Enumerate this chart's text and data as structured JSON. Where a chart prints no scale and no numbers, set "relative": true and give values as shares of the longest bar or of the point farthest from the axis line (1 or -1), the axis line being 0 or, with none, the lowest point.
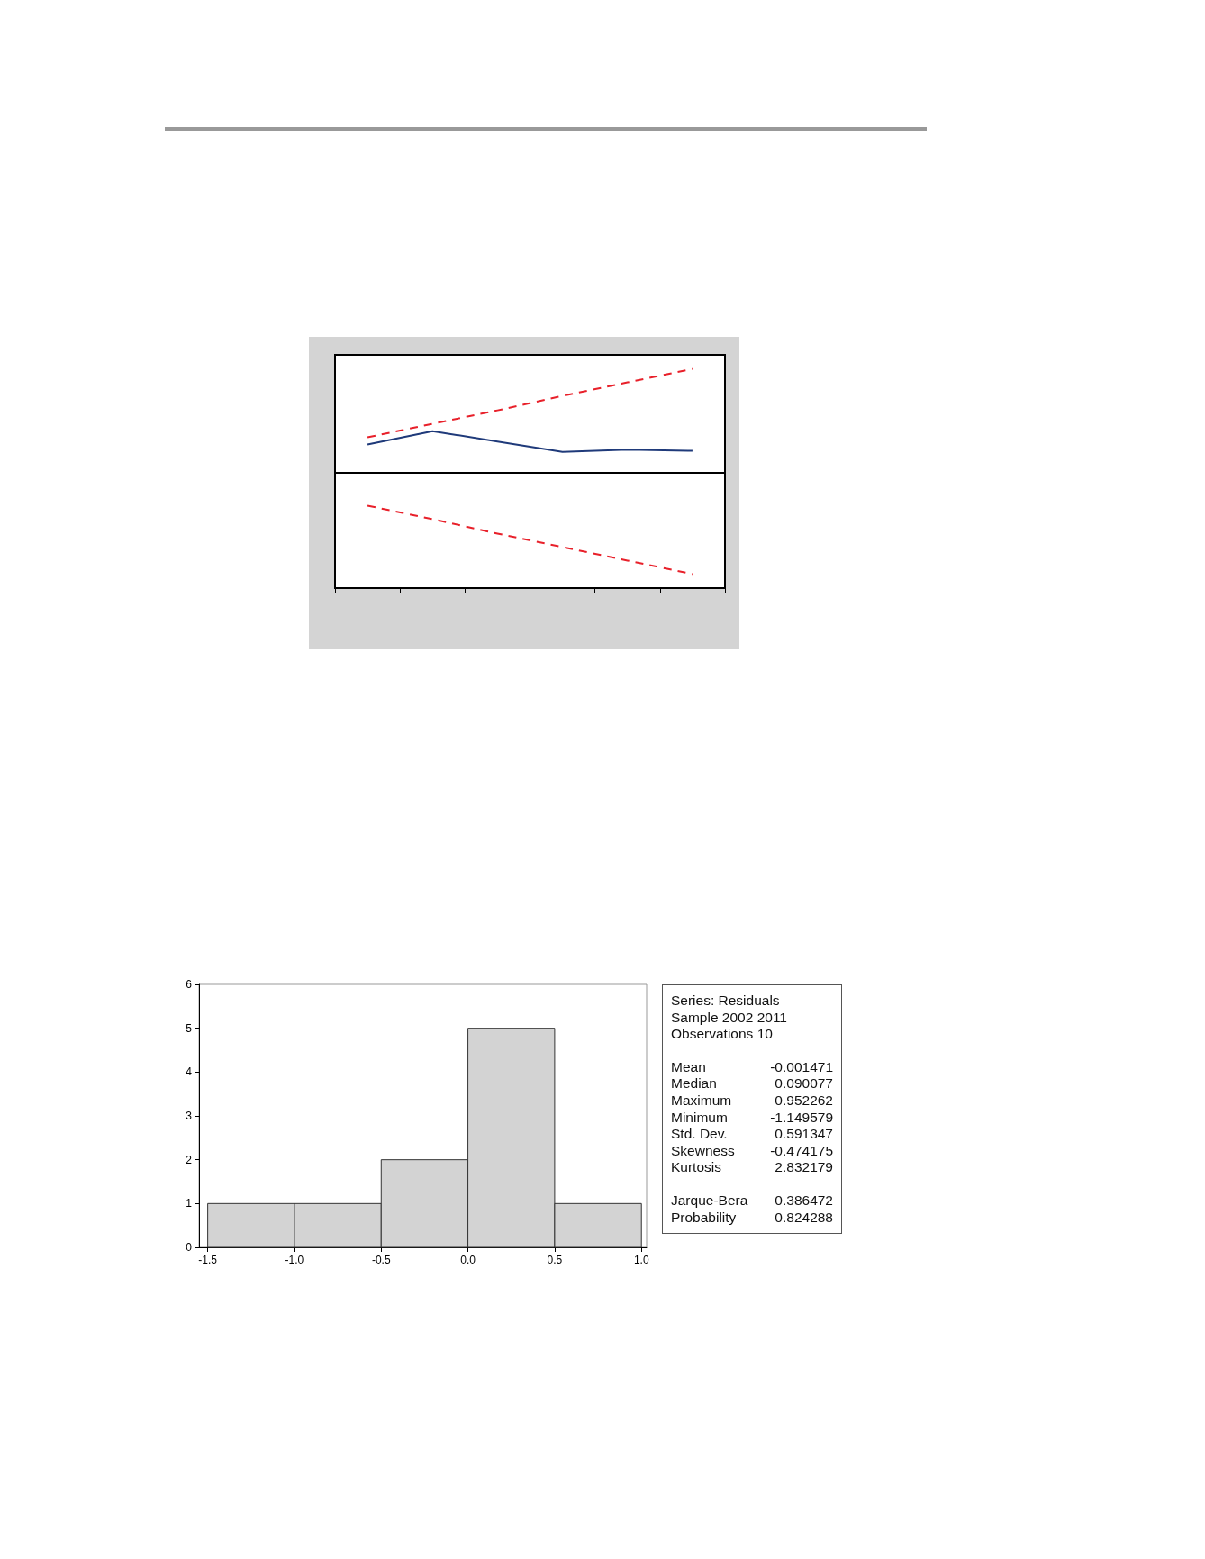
{
  "chart_data": [
    {
      "type": "line",
      "relative": true,
      "categories": [
        null,
        null,
        null,
        null,
        null,
        null
      ],
      "grid": false,
      "series": [
        {
          "color": "#1f3a7a",
          "line_style": "solid",
          "values": [
            0.27,
            0.4,
            0.3,
            0.2,
            0.22,
            0.21
          ]
        },
        {
          "color": "#e8202a",
          "line_style": "dashed",
          "values": [
            0.34,
            0.47,
            0.6,
            0.74,
            0.87,
            1.0
          ]
        },
        {
          "color": "#e8202a",
          "line_style": "dashed",
          "values": [
            -0.32,
            -0.45,
            -0.59,
            -0.72,
            -0.85,
            -0.98
          ]
        }
      ]
    },
    {
      "type": "histogram",
      "bins": [
        -1.5,
        -1.0,
        -0.5,
        0.0,
        0.5,
        1.0
      ],
      "values": [
        1,
        1,
        2,
        5,
        1
      ],
      "color": "#d3d3d3",
      "grid": false,
      "xlim": [
        -1.55,
        1.03
      ],
      "xticks": [
        {
          "value": -1.5,
          "label": "-1.5"
        },
        {
          "value": -1.0,
          "label": "-1.0"
        },
        {
          "value": -0.5,
          "label": "-0.5"
        },
        {
          "value": 0.0,
          "label": "0.0"
        },
        {
          "value": 0.5,
          "label": "0.5"
        },
        {
          "value": 1.0,
          "label": "1.0"
        }
      ],
      "ylim": [
        0,
        6
      ],
      "yticks": [
        0,
        1,
        2,
        3,
        4,
        5,
        6
      ]
    },
    {
      "type": "other",
      "annotations": [
        "Series: Residuals",
        "Sample 2002 2011",
        "Observations 10",
        "Mean",
        "-0.001471",
        "Median",
        "0.090077",
        "Maximum",
        "0.952262",
        "Minimum",
        "-1.149579",
        "Std. Dev.",
        "0.591347",
        "Skewness",
        "-0.474175",
        "Kurtosis",
        "2.832179",
        "Jarque-Bera",
        "0.386472",
        "Probability",
        "0.824288"
      ]
    }
  ]
}
